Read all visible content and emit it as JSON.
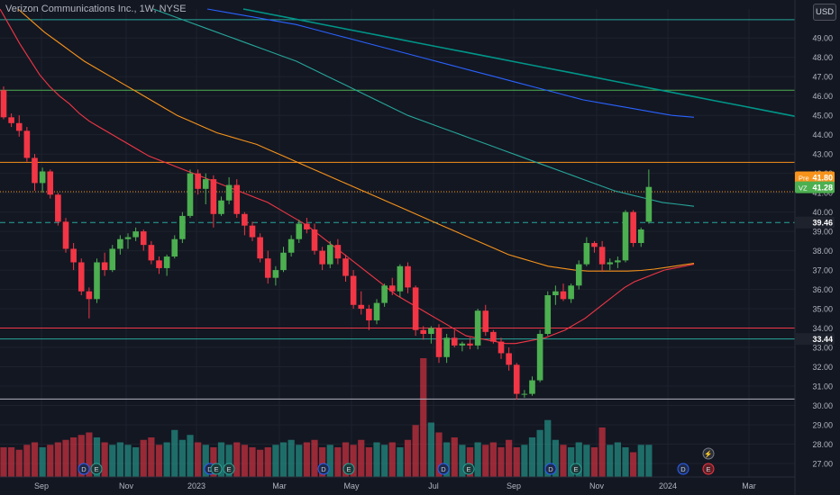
{
  "header": {
    "title": "Verizon Communications Inc., 1W, NYSE",
    "currency_button": "USD"
  },
  "colors": {
    "background": "#131722",
    "grid": "#1e222d",
    "up": "#4caf50",
    "down": "#f23645",
    "volume_up": "#26a69a",
    "volume_down": "#f23645",
    "axis_text": "#b2b5be"
  },
  "chart_data": {
    "type": "candlestick",
    "grid": true,
    "x_axis_labels": [
      "Sep",
      "Nov",
      "2023",
      "Mar",
      "May",
      "Jul",
      "Sep",
      "Nov",
      "2024",
      "Mar"
    ],
    "y_axis_ticks": [
      "27.00",
      "28.00",
      "29.00",
      "30.00",
      "31.00",
      "32.00",
      "33.00",
      "34.00",
      "35.00",
      "36.00",
      "37.00",
      "38.00",
      "39.00",
      "40.00",
      "41.00",
      "42.00",
      "43.00",
      "44.00",
      "45.00",
      "46.00",
      "47.00",
      "48.00",
      "49.00"
    ],
    "ylim": [
      26.3,
      50.5
    ],
    "candles": [
      [
        46.3,
        46.5,
        44.8,
        44.9
      ],
      [
        44.9,
        45.1,
        44.4,
        44.6
      ],
      [
        44.6,
        45.0,
        43.9,
        44.2
      ],
      [
        44.2,
        44.4,
        42.6,
        42.8
      ],
      [
        42.8,
        43.0,
        41.1,
        41.5
      ],
      [
        41.5,
        42.3,
        41.0,
        42.1
      ],
      [
        42.1,
        42.2,
        40.7,
        40.9
      ],
      [
        40.9,
        41.0,
        39.3,
        39.5
      ],
      [
        39.5,
        39.7,
        37.9,
        38.1
      ],
      [
        38.1,
        38.4,
        37.0,
        37.4
      ],
      [
        37.4,
        37.6,
        35.7,
        35.9
      ],
      [
        35.9,
        36.1,
        34.5,
        35.5
      ],
      [
        35.5,
        37.6,
        35.3,
        37.4
      ],
      [
        37.4,
        37.9,
        36.7,
        37.0
      ],
      [
        37.0,
        38.3,
        36.9,
        38.1
      ],
      [
        38.1,
        38.8,
        37.8,
        38.6
      ],
      [
        38.6,
        38.9,
        38.1,
        38.7
      ],
      [
        38.7,
        39.2,
        38.5,
        39.0
      ],
      [
        39.0,
        39.1,
        38.0,
        38.3
      ],
      [
        38.3,
        38.5,
        37.3,
        37.5
      ],
      [
        37.5,
        37.7,
        36.8,
        37.1
      ],
      [
        37.1,
        37.8,
        36.7,
        37.7
      ],
      [
        37.7,
        38.8,
        37.6,
        38.6
      ],
      [
        38.6,
        40.0,
        38.4,
        39.8
      ],
      [
        39.8,
        42.2,
        39.7,
        42.0
      ],
      [
        42.0,
        42.2,
        40.9,
        41.2
      ],
      [
        41.2,
        42.0,
        40.4,
        41.7
      ],
      [
        41.7,
        41.9,
        39.2,
        39.9
      ],
      [
        39.9,
        40.8,
        39.8,
        40.6
      ],
      [
        40.6,
        41.8,
        40.4,
        41.4
      ],
      [
        41.4,
        41.7,
        39.7,
        39.9
      ],
      [
        39.9,
        40.0,
        38.8,
        39.3
      ],
      [
        39.3,
        39.5,
        38.5,
        38.7
      ],
      [
        38.7,
        38.9,
        37.4,
        37.6
      ],
      [
        37.6,
        38.0,
        36.3,
        36.6
      ],
      [
        36.6,
        37.2,
        36.2,
        37.0
      ],
      [
        37.0,
        38.2,
        36.9,
        37.9
      ],
      [
        37.9,
        38.8,
        37.7,
        38.6
      ],
      [
        38.6,
        39.6,
        38.4,
        39.4
      ],
      [
        39.4,
        39.7,
        38.9,
        39.1
      ],
      [
        39.1,
        39.4,
        37.8,
        38.0
      ],
      [
        38.0,
        38.2,
        37.0,
        37.3
      ],
      [
        37.3,
        38.5,
        37.1,
        38.3
      ],
      [
        38.3,
        38.6,
        37.3,
        37.6
      ],
      [
        37.6,
        37.8,
        36.4,
        36.7
      ],
      [
        36.7,
        37.0,
        35.0,
        35.2
      ],
      [
        35.2,
        35.9,
        34.7,
        35.0
      ],
      [
        35.0,
        35.2,
        33.9,
        34.4
      ],
      [
        34.4,
        35.5,
        34.2,
        35.3
      ],
      [
        35.3,
        36.3,
        35.1,
        36.2
      ],
      [
        36.2,
        36.6,
        35.7,
        35.9
      ],
      [
        35.9,
        37.3,
        35.6,
        37.2
      ],
      [
        37.2,
        37.4,
        35.8,
        36.1
      ],
      [
        36.1,
        36.2,
        33.6,
        33.9
      ],
      [
        33.9,
        34.1,
        33.4,
        33.7
      ],
      [
        33.7,
        34.1,
        33.2,
        34.0
      ],
      [
        34.0,
        34.2,
        32.2,
        32.5
      ],
      [
        32.5,
        33.7,
        32.2,
        33.5
      ],
      [
        33.5,
        33.9,
        33.0,
        33.1
      ],
      [
        33.1,
        33.3,
        32.8,
        33.2
      ],
      [
        33.2,
        33.5,
        32.9,
        33.1
      ],
      [
        33.1,
        35.0,
        32.9,
        34.9
      ],
      [
        34.9,
        35.2,
        33.6,
        33.8
      ],
      [
        33.8,
        33.9,
        33.2,
        33.3
      ],
      [
        33.3,
        33.5,
        32.4,
        32.7
      ],
      [
        32.7,
        33.0,
        31.8,
        32.1
      ],
      [
        32.1,
        32.2,
        30.3,
        30.6
      ],
      [
        30.6,
        30.8,
        30.4,
        30.6
      ],
      [
        30.6,
        31.5,
        30.5,
        31.3
      ],
      [
        31.3,
        33.9,
        31.2,
        33.7
      ],
      [
        33.7,
        35.9,
        33.6,
        35.7
      ],
      [
        35.7,
        36.2,
        35.2,
        35.9
      ],
      [
        35.9,
        36.3,
        35.4,
        35.5
      ],
      [
        35.5,
        36.3,
        35.3,
        36.2
      ],
      [
        36.2,
        37.5,
        36.0,
        37.3
      ],
      [
        37.3,
        38.7,
        37.2,
        38.4
      ],
      [
        38.4,
        38.5,
        37.9,
        38.2
      ],
      [
        38.2,
        38.5,
        36.9,
        37.3
      ],
      [
        37.3,
        37.6,
        37.0,
        37.4
      ],
      [
        37.4,
        37.7,
        37.1,
        37.5
      ],
      [
        37.5,
        40.1,
        37.4,
        40.0
      ],
      [
        40.0,
        40.1,
        38.2,
        38.4
      ],
      [
        38.4,
        39.2,
        38.2,
        39.1
      ],
      [
        39.5,
        42.2,
        39.4,
        41.3
      ]
    ],
    "volume": [
      12,
      12,
      11,
      13,
      14,
      12,
      13,
      14,
      15,
      16,
      17,
      18,
      16,
      14,
      13,
      14,
      13,
      12,
      15,
      16,
      13,
      14,
      19,
      15,
      17,
      14,
      13,
      12,
      14,
      13,
      14,
      13,
      12,
      11,
      12,
      13,
      14,
      15,
      13,
      14,
      15,
      12,
      13,
      12,
      14,
      13,
      15,
      12,
      14,
      13,
      14,
      12,
      15,
      21,
      48,
      22,
      18,
      14,
      16,
      13,
      12,
      14,
      13,
      14,
      12,
      15,
      12,
      13,
      16,
      19,
      23,
      15,
      13,
      12,
      14,
      13,
      12,
      20,
      13,
      14,
      12,
      10,
      13,
      13
    ],
    "moving_averages": [
      {
        "color": "#f23645",
        "values": [
          50.5,
          49.6,
          48.7,
          47.9,
          47.1,
          46.5,
          46.0,
          45.6,
          45.1,
          44.7,
          44.4,
          44.1,
          43.8,
          43.5,
          43.2,
          42.9,
          42.7,
          42.5,
          42.3,
          42.1,
          41.9,
          41.7,
          41.5,
          41.3,
          41.1,
          40.9,
          40.7,
          40.5,
          40.2,
          39.9,
          39.6,
          39.3,
          38.9,
          38.5,
          38.1,
          37.7,
          37.3,
          36.9,
          36.5,
          36.1,
          35.7,
          35.4,
          35.1,
          34.8,
          34.5,
          34.2,
          33.9,
          33.6,
          33.5,
          33.4,
          33.3,
          33.2,
          33.2,
          33.3,
          33.4,
          33.5,
          33.7,
          33.9,
          34.2,
          34.5,
          34.9,
          35.3,
          35.7,
          36.1,
          36.4,
          36.6,
          36.8,
          37.0,
          37.1,
          37.2,
          37.3
        ]
      },
      {
        "color": "#f7931a",
        "values": [
          50.5,
          49.9,
          49.3,
          48.8,
          48.3,
          47.8,
          47.4,
          47.0,
          46.6,
          46.2,
          45.8,
          45.4,
          45.0,
          44.7,
          44.4,
          44.1,
          43.9,
          43.7,
          43.5,
          43.2,
          42.9,
          42.6,
          42.3,
          42.0,
          41.7,
          41.4,
          41.1,
          40.8,
          40.5,
          40.2,
          39.9,
          39.6,
          39.3,
          39.0,
          38.7,
          38.4,
          38.1,
          37.8,
          37.6,
          37.4,
          37.2,
          37.1,
          37.0,
          36.95,
          36.95,
          36.95,
          36.95,
          36.98,
          37.05,
          37.15,
          37.25,
          37.35
        ]
      },
      {
        "color": "#26a69a",
        "values": [
          50.5,
          50.2,
          49.9,
          49.6,
          49.3,
          49.0,
          48.7,
          48.4,
          48.1,
          47.8,
          47.4,
          47.0,
          46.6,
          46.2,
          45.8,
          45.4,
          45.0,
          44.7,
          44.4,
          44.1,
          43.8,
          43.5,
          43.2,
          42.9,
          42.6,
          42.3,
          42.0,
          41.7,
          41.4,
          41.1,
          40.9,
          40.7,
          40.5,
          40.4,
          40.3
        ]
      },
      {
        "color": "#2962ff",
        "values": [
          50.5,
          50.3,
          50.1,
          49.9,
          49.7,
          49.4,
          49.1,
          48.8,
          48.5,
          48.2,
          47.9,
          47.6,
          47.3,
          47.0,
          46.7,
          46.4,
          46.1,
          45.8,
          45.6,
          45.4,
          45.2,
          45.0,
          44.9
        ]
      },
      {
        "color": "#009688",
        "values": [
          50.5,
          50.25,
          50.0,
          49.75,
          49.5,
          49.25,
          49.0,
          48.75,
          48.5,
          48.25,
          48.0,
          47.75,
          47.5,
          47.25,
          47.0,
          46.75,
          46.5,
          46.25,
          46.0,
          45.75,
          45.5,
          45.25,
          45.0,
          44.75,
          44.5
        ]
      }
    ],
    "horizontal_lines": [
      {
        "value": 49.95,
        "color": "#26a69a",
        "style": "solid"
      },
      {
        "value": 46.3,
        "color": "#4caf50",
        "style": "solid"
      },
      {
        "value": 42.57,
        "color": "#f7931a",
        "style": "solid"
      },
      {
        "value": 41.05,
        "color": "#f7931a",
        "style": "dotted"
      },
      {
        "value": 39.46,
        "color": "#26a69a",
        "style": "dashed"
      },
      {
        "value": 34.0,
        "color": "#f23645",
        "style": "solid"
      },
      {
        "value": 33.44,
        "color": "#26a69a",
        "style": "solid"
      },
      {
        "value": 30.33,
        "color": "#b2b5be",
        "style": "solid"
      }
    ],
    "price_labels": [
      {
        "tag": "Pre",
        "text": "41.80",
        "value": 41.8,
        "color": "#f7931a"
      },
      {
        "tag": "VZ",
        "text": "41.28",
        "value": 41.28,
        "color": "#4caf50"
      },
      {
        "tag": "",
        "text": "39.46",
        "value": 39.46,
        "color": "#1e222d"
      },
      {
        "tag": "",
        "text": "33.44",
        "value": 33.44,
        "color": "#1e222d"
      }
    ],
    "event_markers": [
      {
        "bar": 13,
        "letter": "D"
      },
      {
        "bar": 15,
        "letter": "E"
      },
      {
        "bar": 33,
        "letter": "D"
      },
      {
        "bar": 34,
        "letter": "E"
      },
      {
        "bar": 36,
        "letter": "E"
      },
      {
        "bar": 51,
        "letter": "D"
      },
      {
        "bar": 55,
        "letter": "E"
      },
      {
        "bar": 70,
        "letter": "D"
      },
      {
        "bar": 74,
        "letter": "E"
      },
      {
        "bar": 87,
        "letter": "D"
      },
      {
        "bar": 91,
        "letter": "E"
      },
      {
        "bar": 108,
        "letter": "D"
      },
      {
        "bar": 112,
        "letter": "⚡"
      },
      {
        "bar": 112,
        "letter": "E"
      }
    ]
  }
}
